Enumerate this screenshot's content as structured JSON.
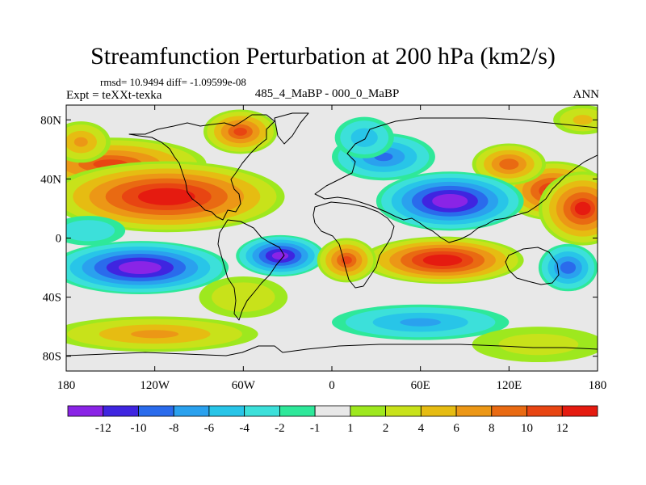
{
  "header": {
    "title": "Streamfunction Perturbation at 200 hPa (km2/s)",
    "stats": "rmsd= 10.9494  diff= -1.09599e-08",
    "experiment": "Expt = teXXt-texka",
    "subtitle": "485_4_MaBP - 000_0_MaBP",
    "season": "ANN"
  },
  "axes": {
    "x_ticks": [
      "180",
      "120W",
      "60W",
      "0",
      "60E",
      "120E",
      "180"
    ],
    "y_ticks": [
      "80N",
      "40N",
      "0",
      "40S",
      "80S"
    ],
    "lon_range": [
      -180,
      180
    ],
    "lat_range": [
      -90,
      90
    ]
  },
  "colorbar": {
    "labels": [
      "-12",
      "-10",
      "-8",
      "-6",
      "-4",
      "-2",
      "-1",
      "1",
      "2",
      "4",
      "6",
      "8",
      "10",
      "12"
    ],
    "colors": [
      "#8a24e6",
      "#3f25e0",
      "#2a6bec",
      "#2aa1ee",
      "#28c5e8",
      "#3ce0da",
      "#2ee89a",
      "#e8e8e8",
      "#9ee81e",
      "#c8e21a",
      "#e6bc12",
      "#ec9716",
      "#e96a12",
      "#e84512",
      "#e51b10"
    ]
  },
  "map": {
    "background": "#e8e8e8",
    "features": [
      {
        "lon": -150,
        "lat": 50,
        "value": 10,
        "ry": 18,
        "rx": 65
      },
      {
        "lon": 150,
        "lat": 32,
        "value": 12,
        "ry": 20,
        "rx": 35
      },
      {
        "lon": -112,
        "lat": 28,
        "value": 14,
        "ry": 24,
        "rx": 80
      },
      {
        "lon": 170,
        "lat": 20,
        "value": 12,
        "ry": 25,
        "rx": 30
      },
      {
        "lon": -62,
        "lat": 72,
        "value": 10,
        "ry": 15,
        "rx": 25
      },
      {
        "lon": 120,
        "lat": 50,
        "value": 9,
        "ry": 14,
        "rx": 25
      },
      {
        "lon": 80,
        "lat": 25,
        "value": -14,
        "ry": 20,
        "rx": 50
      },
      {
        "lon": 35,
        "lat": 55,
        "value": -8,
        "ry": 16,
        "rx": 35
      },
      {
        "lon": 22,
        "lat": 68,
        "value": -5,
        "ry": 14,
        "rx": 20
      },
      {
        "lon": -130,
        "lat": -20,
        "value": -14,
        "ry": 18,
        "rx": 60
      },
      {
        "lon": -35,
        "lat": -12,
        "value": -13,
        "ry": 14,
        "rx": 30
      },
      {
        "lon": 160,
        "lat": -20,
        "value": -9,
        "ry": 16,
        "rx": 20
      },
      {
        "lon": 75,
        "lat": -15,
        "value": 14,
        "ry": 16,
        "rx": 55
      },
      {
        "lon": 10,
        "lat": -15,
        "value": 10,
        "ry": 15,
        "rx": 20
      },
      {
        "lon": -170,
        "lat": 65,
        "value": 6,
        "ry": 14,
        "rx": 20
      },
      {
        "lon": -120,
        "lat": -65,
        "value": 6,
        "ry": 12,
        "rx": 70
      },
      {
        "lon": 60,
        "lat": -57,
        "value": -6,
        "ry": 12,
        "rx": 60
      },
      {
        "lon": 140,
        "lat": -72,
        "value": 2,
        "ry": 12,
        "rx": 45
      },
      {
        "lon": -60,
        "lat": -40,
        "value": 3,
        "ry": 14,
        "rx": 30
      },
      {
        "lon": -165,
        "lat": 5,
        "value": -3,
        "ry": 10,
        "rx": 25
      },
      {
        "lon": 170,
        "lat": 80,
        "value": 4,
        "ry": 10,
        "rx": 20
      }
    ]
  }
}
